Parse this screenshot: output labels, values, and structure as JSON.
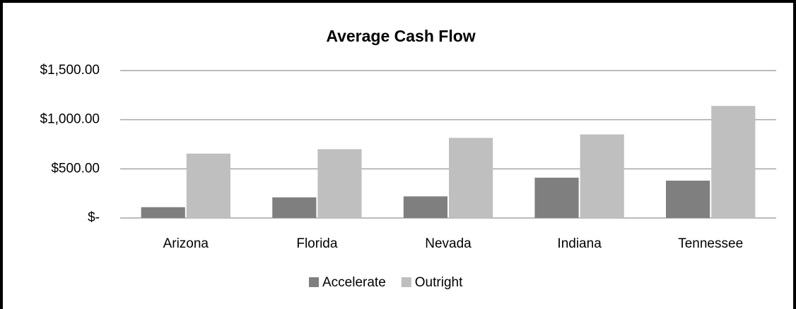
{
  "chart_data": {
    "type": "bar",
    "title": "Average Cash Flow",
    "categories": [
      "Arizona",
      "Florida",
      "Nevada",
      "Indiana",
      "Tennessee"
    ],
    "series": [
      {
        "name": "Accelerate",
        "color": "#7f7f80",
        "values": [
          110,
          210,
          220,
          410,
          380
        ]
      },
      {
        "name": "Outright",
        "color": "#bfbfbf",
        "values": [
          655,
          700,
          815,
          850,
          1140
        ]
      }
    ],
    "ylim": [
      0,
      1500
    ],
    "yticks": [
      {
        "value": 0,
        "label": "$-"
      },
      {
        "value": 500,
        "label": "$500.00"
      },
      {
        "value": 1000,
        "label": "$1,000.00"
      },
      {
        "value": 1500,
        "label": "$1,500.00"
      }
    ],
    "grid": true,
    "legend": "bottom"
  }
}
